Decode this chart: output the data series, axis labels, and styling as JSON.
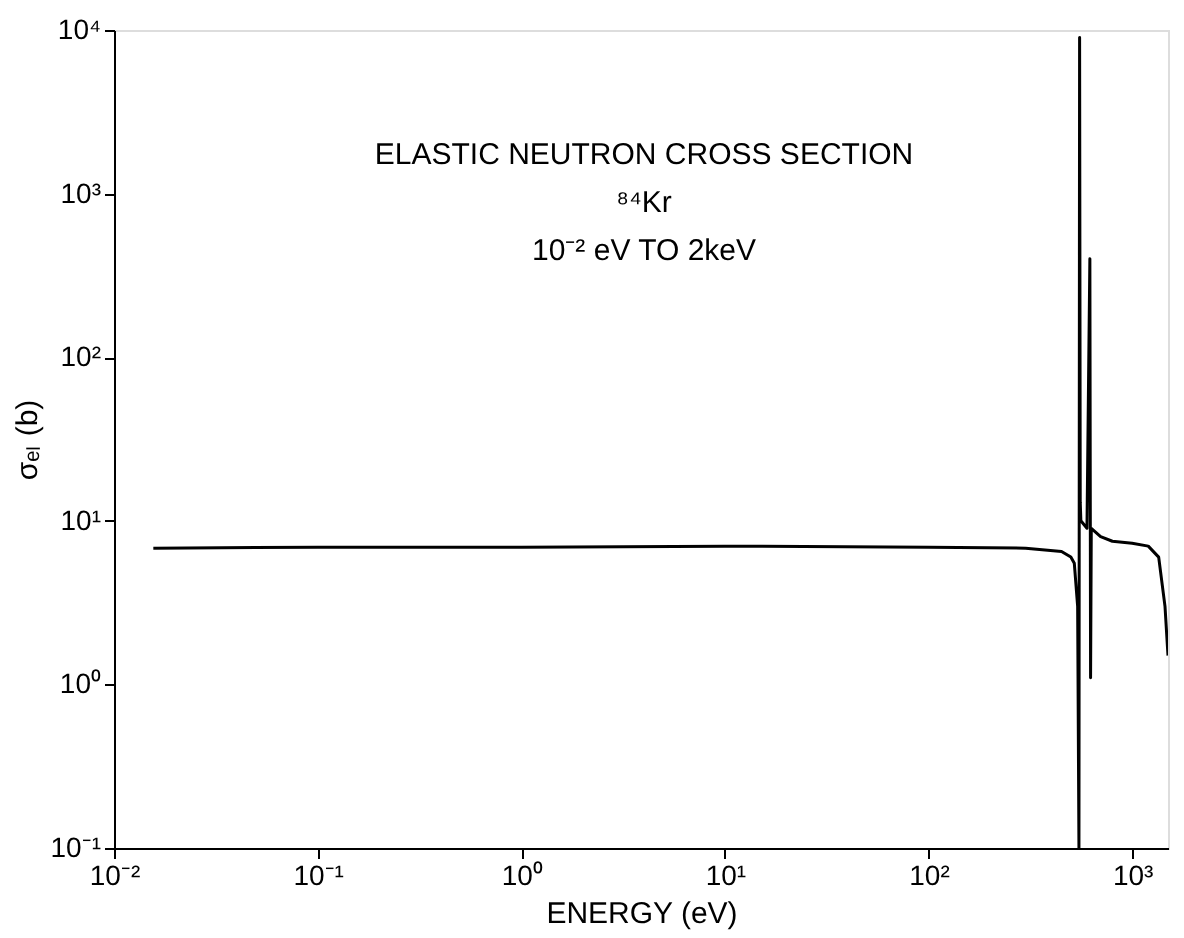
{
  "chart_data": {
    "type": "line",
    "title": "ELASTIC NEUTRON CROSS SECTION",
    "annotations": [
      "⁸⁴Kr",
      "10⁻² eV TO 2keV"
    ],
    "xlabel": "ENERGY (eV)",
    "ylabel": "σₑₗ (b)",
    "log": "xy",
    "grid": false,
    "legend": false,
    "marker": "none",
    "line_style": "solid",
    "xlim": [
      0.01,
      1500
    ],
    "ylim": [
      0.1,
      10000
    ],
    "xticks": [
      {
        "value": 0.01,
        "label": "10⁻²"
      },
      {
        "value": 0.1,
        "label": "10⁻¹"
      },
      {
        "value": 1,
        "label": "10⁰"
      },
      {
        "value": 10,
        "label": "10¹"
      },
      {
        "value": 100,
        "label": "10²"
      },
      {
        "value": 1000,
        "label": "10³"
      }
    ],
    "yticks": [
      {
        "value": 0.1,
        "label": "10⁻¹"
      },
      {
        "value": 1,
        "label": "10⁰"
      },
      {
        "value": 10,
        "label": "10¹"
      },
      {
        "value": 100,
        "label": "10²"
      },
      {
        "value": 1000,
        "label": "10³"
      },
      {
        "value": 10000,
        "label": "10⁴"
      }
    ],
    "series": [
      {
        "color": "#000000",
        "x": [
          0.0156,
          0.1,
          1,
          10,
          100,
          300,
          450,
          500,
          520,
          540,
          548,
          552,
          556,
          560,
          600,
          620,
          625,
          630,
          700,
          800,
          1000,
          1200,
          1350,
          1450,
          1500
        ],
        "values": [
          6.8,
          6.9,
          6.9,
          7.0,
          6.9,
          6.8,
          6.5,
          6.0,
          5.5,
          3,
          0.1,
          9000,
          13,
          10,
          9,
          400,
          1.1,
          9,
          8,
          7.5,
          7.3,
          7,
          6,
          3,
          1.5
        ]
      }
    ]
  }
}
